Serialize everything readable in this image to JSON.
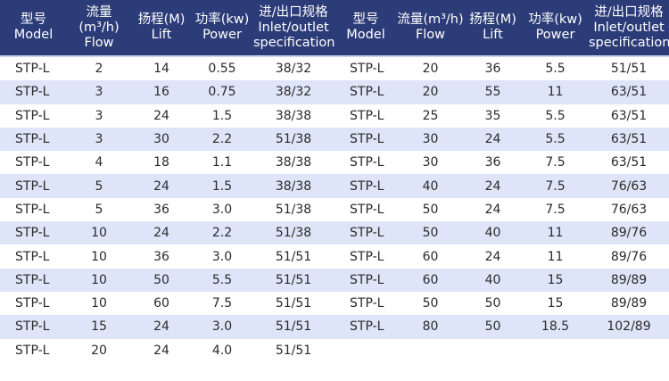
{
  "headers": [
    {
      "cn": "型号",
      "en": "Model"
    },
    {
      "cn": "流量(m³/h)",
      "en": "Flow"
    },
    {
      "cn": "扬程(M)",
      "en": "Lift"
    },
    {
      "cn": "功率(kw)",
      "en": "Power"
    },
    {
      "cn": "进/出口规格",
      "en": "Inlet/outlet specification"
    }
  ],
  "colors": {
    "header_bg": "#2c3c78",
    "stripe": "#dfe5f8"
  },
  "left_rows": [
    [
      "STP-L",
      "2",
      "14",
      "0.55",
      "38/32"
    ],
    [
      "STP-L",
      "3",
      "16",
      "0.75",
      "38/32"
    ],
    [
      "STP-L",
      "3",
      "24",
      "1.5",
      "38/38"
    ],
    [
      "STP-L",
      "3",
      "30",
      "2.2",
      "51/38"
    ],
    [
      "STP-L",
      "4",
      "18",
      "1.1",
      "38/38"
    ],
    [
      "STP-L",
      "5",
      "24",
      "1.5",
      "38/38"
    ],
    [
      "STP-L",
      "5",
      "36",
      "3.0",
      "51/38"
    ],
    [
      "STP-L",
      "10",
      "24",
      "2.2",
      "51/38"
    ],
    [
      "STP-L",
      "10",
      "36",
      "3.0",
      "51/51"
    ],
    [
      "STP-L",
      "10",
      "50",
      "5.5",
      "51/51"
    ],
    [
      "STP-L",
      "10",
      "60",
      "7.5",
      "51/51"
    ],
    [
      "STP-L",
      "15",
      "24",
      "3.0",
      "51/51"
    ],
    [
      "STP-L",
      "20",
      "24",
      "4.0",
      "51/51"
    ]
  ],
  "right_rows": [
    [
      "STP-L",
      "20",
      "36",
      "5.5",
      "51/51"
    ],
    [
      "STP-L",
      "20",
      "55",
      "11",
      "63/51"
    ],
    [
      "STP-L",
      "25",
      "35",
      "5.5",
      "63/51"
    ],
    [
      "STP-L",
      "30",
      "24",
      "5.5",
      "63/51"
    ],
    [
      "STP-L",
      "30",
      "36",
      "7.5",
      "63/51"
    ],
    [
      "STP-L",
      "40",
      "24",
      "7.5",
      "76/63"
    ],
    [
      "STP-L",
      "50",
      "24",
      "7.5",
      "76/63"
    ],
    [
      "STP-L",
      "50",
      "40",
      "11",
      "89/76"
    ],
    [
      "STP-L",
      "60",
      "24",
      "11",
      "89/76"
    ],
    [
      "STP-L",
      "60",
      "40",
      "15",
      "89/89"
    ],
    [
      "STP-L",
      "50",
      "50",
      "15",
      "89/89"
    ],
    [
      "STP-L",
      "80",
      "50",
      "18.5",
      "102/89"
    ]
  ]
}
